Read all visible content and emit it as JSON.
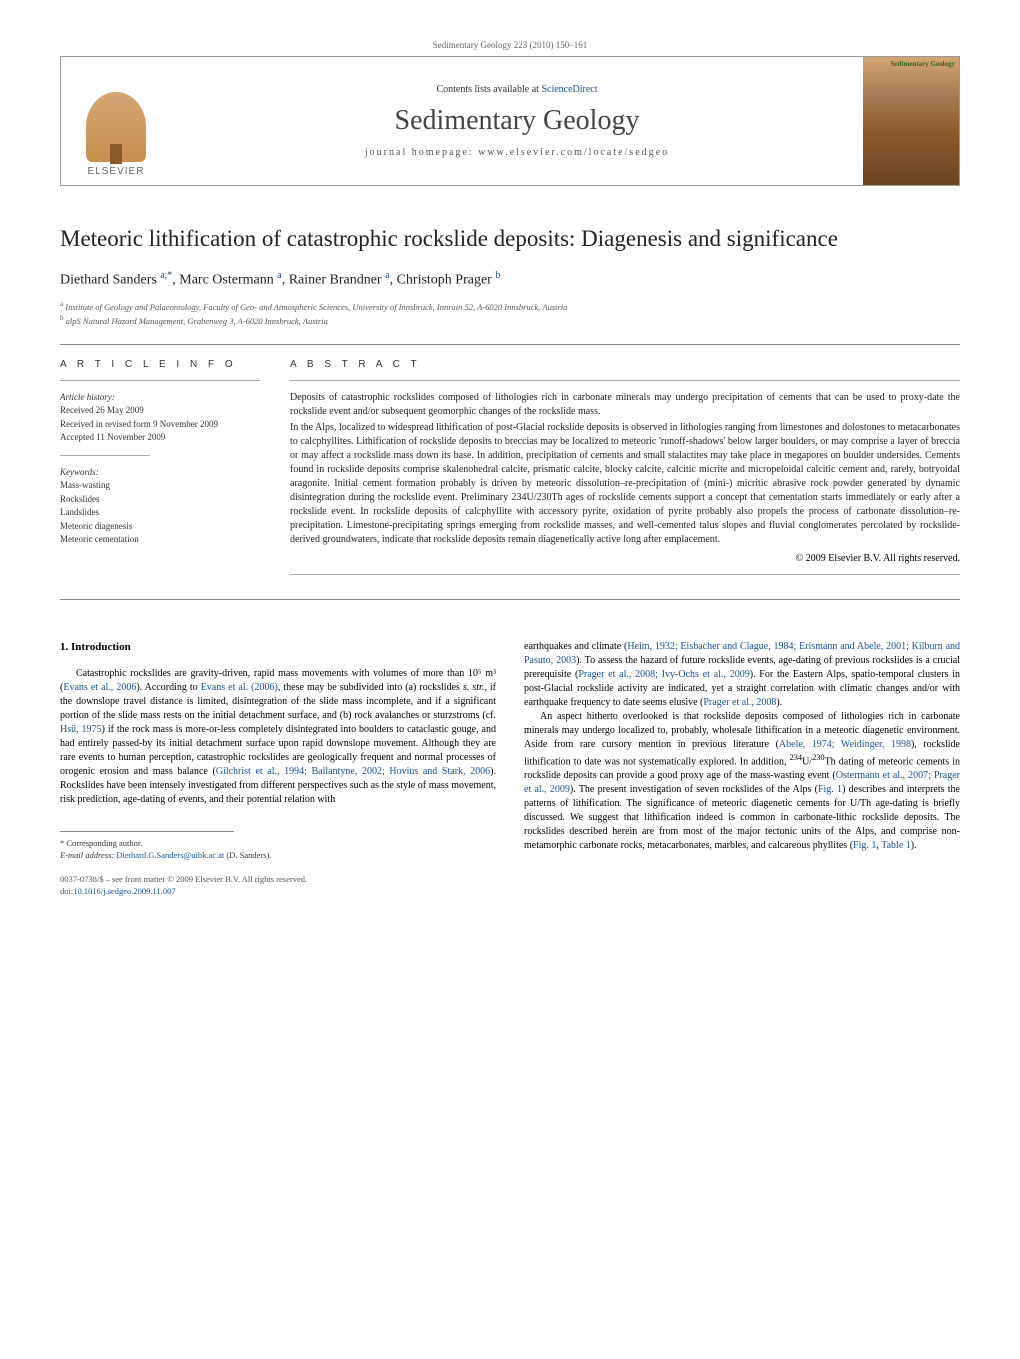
{
  "journal_line": "Sedimentary Geology 223 (2010) 150–161",
  "header": {
    "contents_prefix": "Contents lists available at ",
    "contents_link": "ScienceDirect",
    "journal_name": "Sedimentary Geology",
    "homepage": "journal homepage: www.elsevier.com/locate/sedgeo",
    "publisher": "ELSEVIER",
    "cover_label": "Sedimentary Geology"
  },
  "title": "Meteoric lithification of catastrophic rockslide deposits: Diagenesis and significance",
  "authors_html": "Diethard Sanders <sup>a,*</sup>, Marc Ostermann <sup>a</sup>, Rainer Brandner <sup>a</sup>, Christoph Prager <sup>b</sup>",
  "affiliations": [
    "a  Institute of Geology and Palaeontology, Faculty of Geo- and Atmospheric Sciences, University of Innsbruck, Innrain 52, A-6020 Innsbruck, Austria",
    "b  alpS Natural Hazard Management, Grabenweg 3, A-6020 Innsbruck, Austria"
  ],
  "article_info": {
    "heading": "A R T I C L E   I N F O",
    "history_label": "Article history:",
    "history": [
      "Received 26 May 2009",
      "Received in revised form 9 November 2009",
      "Accepted 11 November 2009"
    ],
    "keywords_label": "Keywords:",
    "keywords": [
      "Mass-wasting",
      "Rockslides",
      "Landslides",
      "Meteoric diagenesis",
      "Meteoric cementation"
    ]
  },
  "abstract": {
    "heading": "A B S T R A C T",
    "paragraphs": [
      "Deposits of catastrophic rockslides composed of lithologies rich in carbonate minerals may undergo precipitation of cements that can be used to proxy-date the rockslide event and/or subsequent geomorphic changes of the rockslide mass.",
      "In the Alps, localized to widespread lithification of post-Glacial rockslide deposits is observed in lithologies ranging from limestones and dolostones to metacarbonates to calcphyllites. Lithification of rockslide deposits to breccias may be localized to meteoric 'runoff-shadows' below larger boulders, or may comprise a layer of breccia or may affect a rockslide mass down its base. In addition, precipitation of cements and small stalactites may take place in megapores on boulder undersides. Cements found in rockslide deposits comprise skalenohedral calcite, prismatic calcite, blocky calcite, calcitic micrite and micropeloidal calcitic cement and, rarely, botryoidal aragonite. Initial cement formation probably is driven by meteoric dissolution–re-precipitation of (mini-) micritic abrasive rock powder generated by dynamic disintegration during the rockslide event. Preliminary 234U/230Th ages of rockslide cements support a concept that cementation starts immediately or early after a rockslide event. In rockslide deposits of calcphyllite with accessory pyrite, oxidation of pyrite probably also propels the process of carbonate dissolution–re-precipitation. Limestone-precipitating springs emerging from rockslide masses, and well-cemented talus slopes and fluvial conglomerates percolated by rockslide-derived groundwaters, indicate that rockslide deposits remain diagenetically active long after emplacement."
    ],
    "copyright": "© 2009 Elsevier B.V. All rights reserved."
  },
  "intro": {
    "heading": "1. Introduction",
    "col1": [
      "Catastrophic rockslides are gravity-driven, rapid mass movements with volumes of more than 10⁵ m³ (<a class='ref'>Evans et al., 2006</a>). According to <a class='ref'>Evans et al. (2006)</a>, these may be subdivided into (a) rockslides <i>s. str.</i>, if the downslope travel distance is limited, disintegration of the slide mass incomplete, and if a significant portion of the slide mass rests on the initial detachment surface, and (b) rock avalanches or sturzstroms (cf. <a class='ref'>Hsü, 1975</a>) if the rock mass is more-or-less completely disintegrated into boulders to cataclastic gouge, and had entirely passed-by its initial detachment surface upon rapid downslope movement. Although they are rare events to human perception, catastrophic rockslides are geologically frequent and normal processes of orogenic erosion and mass balance (<a class='ref'>Gilchrist et al., 1994; Ballantyne, 2002; Hovius and Stark, 2006</a>). Rockslides have been intensely investigated from different perspectives such as the style of mass movement, risk prediction, age-dating of events, and their potential relation with"
    ],
    "col2": [
      "earthquakes and climate (<a class='ref'>Heim, 1932; Eisbacher and Clague, 1984; Erismann and Abele, 2001; Kilburn and Pasuto, 2003</a>). To assess the hazard of future rockslide events, age-dating of previous rockslides is a crucial prerequisite (<a class='ref'>Prager et al., 2008; Ivy-Ochs et al., 2009</a>). For the Eastern Alps, spatio-temporal clusters in post-Glacial rockslide activity are indicated, yet a straight correlation with climatic changes and/or with earthquake frequency to date seems elusive (<a class='ref'>Prager et al., 2008</a>).",
      "An aspect hitherto overlooked is that rockslide deposits composed of lithologies rich in carbonate minerals may undergo localized to, probably, wholesale lithification in a meteoric diagenetic environment. Aside from rare cursory mention in previous literature (<a class='ref'>Abele, 1974; Weidinger, 1998</a>), rockslide lithification to date was not systematically explored. In addition, <sup>234</sup>U/<sup>230</sup>Th dating of meteoric cements in rockslide deposits can provide a good proxy age of the mass-wasting event (<a class='ref'>Ostermann et al., 2007; Prager et al., 2009</a>). The present investigation of seven rockslides of the Alps (<a class='ref'>Fig. 1</a>) describes and interprets the patterns of lithification. The significance of meteoric diagenetic cements for U/Th age-dating is briefly discussed. We suggest that lithification indeed is common in carbonate-lithic rockslide deposits. The rockslides described herein are from most of the major tectonic units of the Alps, and comprise non-metamorphic carbonate rocks, metacarbonates, marbles, and calcareous phyllites (<a class='ref'>Fig. 1</a>, <a class='ref'>Table 1</a>)."
    ]
  },
  "footnote": {
    "corresponding": "* Corresponding author.",
    "email_label": "E-mail address:",
    "email": "Diethard.G.Sanders@uibk.ac.at",
    "email_suffix": " (D. Sanders)."
  },
  "bottom": {
    "front_matter": "0037-0738/$ – see front matter © 2009 Elsevier B.V. All rights reserved.",
    "doi_label": "doi:",
    "doi": "10.1016/j.sedgeo.2009.11.007"
  },
  "colors": {
    "link": "#1a4f8f",
    "text": "#000000",
    "rule": "#888888",
    "muted": "#555555"
  }
}
